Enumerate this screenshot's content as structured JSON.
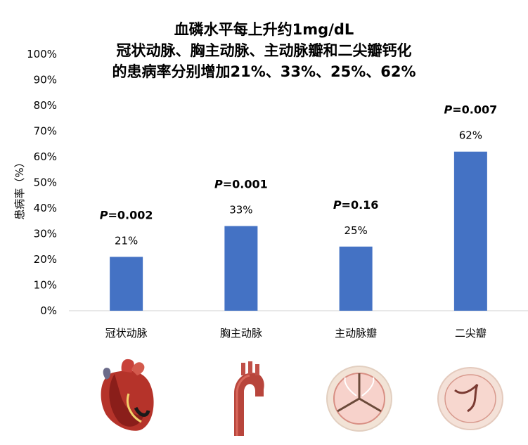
{
  "title_lines": [
    "血磷水平每上升约1mg/dL",
    "冠状动脉、胸主动脉、主动脉瓣和二尖瓣钙化",
    "的患病率分别增加21%、33%、25%、62%"
  ],
  "chart_data": {
    "type": "bar",
    "title": "血磷水平每上升约1mg/dL 冠状动脉、胸主动脉、主动脉瓣和二尖瓣钙化 的患病率分别增加21%、33%、25%、62%",
    "ylabel": "患病率（%）",
    "xlabel": "",
    "ylim": [
      0,
      100
    ],
    "yticks": [
      "0%",
      "10%",
      "20%",
      "30%",
      "40%",
      "50%",
      "60%",
      "70%",
      "80%",
      "90%",
      "100%"
    ],
    "categories": [
      "冠状动脉",
      "胸主动脉",
      "主动脉瓣",
      "二尖瓣"
    ],
    "values": [
      21,
      33,
      25,
      62
    ],
    "data_labels": [
      "21%",
      "33%",
      "25%",
      "62%"
    ],
    "p_values": [
      "=0.002",
      "=0.001",
      "=0.16",
      "=0.007"
    ],
    "p_prefix": "P",
    "bar_color": "#4472C4",
    "grid": false
  },
  "images": [
    {
      "icon": "heart-icon"
    },
    {
      "icon": "aorta-icon"
    },
    {
      "icon": "aortic-valve-icon"
    },
    {
      "icon": "mitral-valve-icon"
    }
  ]
}
